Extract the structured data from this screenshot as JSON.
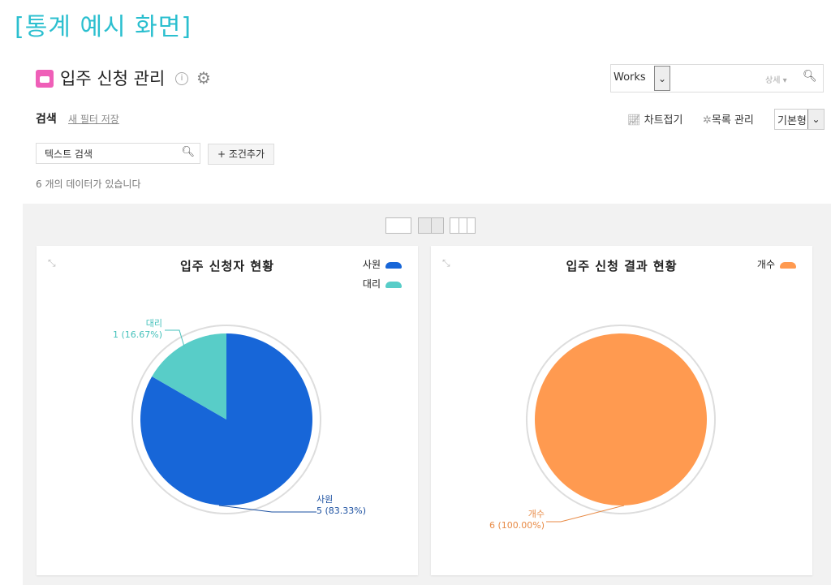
{
  "banner": "[통계 예시 화면]",
  "header": {
    "title": "입주 신청 관리",
    "info_icon": "info-icon",
    "settings_icon": "gear-icon"
  },
  "top_search": {
    "scope": "Works",
    "detail": "상세 ▾"
  },
  "toolbar": {
    "search_label": "검색",
    "save_filter": "새 필터 저장",
    "chart_fold": "차트접기",
    "list_manage": "목록 관리",
    "view_type": "기본형"
  },
  "filter": {
    "text_search_placeholder": "텍스트 검색",
    "add_condition": "+ 조건추가"
  },
  "result_count": "6 개의 데이터가 있습니다",
  "chart_data": [
    {
      "type": "pie",
      "title": "입주 신청자 현황",
      "legend_position": "top-right",
      "slices": [
        {
          "name": "사원",
          "value": 5,
          "label": "5 (83.33%)",
          "color": "#1766d8"
        },
        {
          "name": "대리",
          "value": 1,
          "label": "1 (16.67%)",
          "color": "#58cdc8"
        }
      ]
    },
    {
      "type": "pie",
      "title": "입주 신청 결과 현황",
      "legend_position": "top-right",
      "slices": [
        {
          "name": "개수",
          "value": 6,
          "label": "6 (100.00%)",
          "color": "#ff9a50"
        }
      ]
    }
  ]
}
